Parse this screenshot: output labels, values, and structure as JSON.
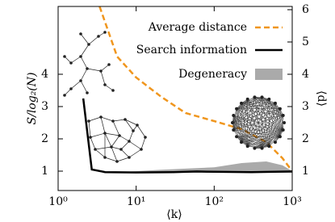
{
  "chart_data": {
    "type": "line",
    "xlabel": "⟨k⟩",
    "ylabel": "S/log₂(N)",
    "y2label": "⟨d⟩",
    "xscale": "log",
    "xlim": [
      1,
      1000
    ],
    "xticks": [
      {
        "value": 1,
        "label": "10⁰"
      },
      {
        "value": 10,
        "label": "10¹"
      },
      {
        "value": 100,
        "label": "10²"
      },
      {
        "value": 1000,
        "label": "10³"
      }
    ],
    "ylim": [
      0.4,
      6.1
    ],
    "yticks": [
      1,
      2,
      3,
      4
    ],
    "y2lim": [
      0.4,
      6.1
    ],
    "y2ticks": [
      1,
      2,
      3,
      4,
      5,
      6
    ],
    "legend": "upper right",
    "series": [
      {
        "name": "Average distance",
        "color": "#f0961e",
        "style": "dashed",
        "axis": "y2",
        "x": [
          3.4,
          5.7,
          10,
          21,
          43,
          100,
          225,
          465,
          750,
          1000
        ],
        "values": [
          6.1,
          4.55,
          3.9,
          3.3,
          2.8,
          2.55,
          2.3,
          1.9,
          1.4,
          1.0
        ]
      },
      {
        "name": "Search information",
        "color": "#000000",
        "style": "solid",
        "x": [
          2.1,
          2.7,
          4,
          10,
          30,
          60,
          100,
          300,
          1000
        ],
        "values": [
          3.25,
          1.05,
          0.97,
          0.96,
          0.97,
          0.99,
          0.98,
          0.97,
          0.99
        ]
      },
      {
        "name": "Degeneracy",
        "color": "#aaaaaa",
        "style": "band",
        "x": [
          6,
          20,
          100,
          225,
          465,
          750,
          1000
        ],
        "values": [
          0.97,
          1.04,
          1.12,
          1.25,
          1.3,
          1.18,
          1.0
        ],
        "base": [
          0.95,
          0.95,
          0.95,
          0.95,
          0.95,
          0.95,
          0.95
        ]
      }
    ]
  }
}
